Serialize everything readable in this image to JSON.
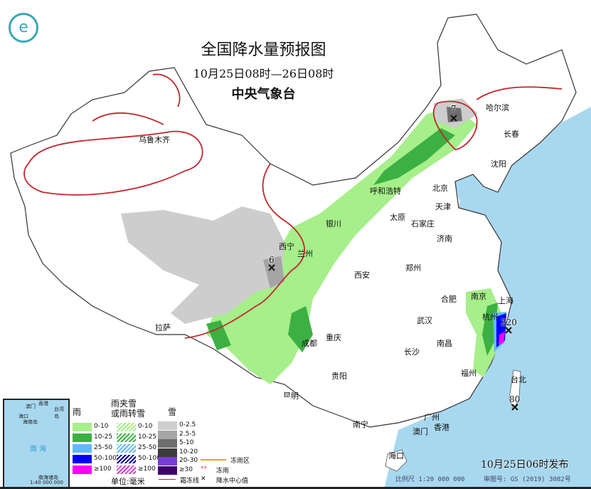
{
  "header": {
    "title": "全国降水量预报图",
    "period": "10月25日08时—26日08时",
    "issuer": "中央气象台"
  },
  "cities": [
    "哈尔滨",
    "长春",
    "沈阳",
    "北京",
    "天津",
    "呼和浩特",
    "乌鲁木齐",
    "银川",
    "太原",
    "石家庄",
    "济南",
    "西宁",
    "兰州",
    "西安",
    "郑州",
    "南京",
    "上海",
    "合肥",
    "杭州",
    "武汉",
    "成都",
    "重庆",
    "拉萨",
    "长沙",
    "南昌",
    "福州",
    "贵阳",
    "昆明",
    "台北",
    "南宁",
    "广州",
    "澳门",
    "香港",
    "海口"
  ],
  "precip_centers": [
    "7",
    "6",
    "220",
    "80"
  ],
  "inset": {
    "sea": "南 海",
    "islands": "南海诸岛",
    "scale": "1:40 000 000",
    "labels": [
      "海口",
      "海南岛",
      "台湾岛",
      "澳门",
      "香港"
    ]
  },
  "legend": {
    "rain_title": "雨",
    "mixed_title": "雨夹雪\n或雨转雪",
    "snow_title": "雪",
    "rain": [
      {
        "label": "0-10",
        "color": "#a6ef8a"
      },
      {
        "label": "10-25",
        "color": "#3cb043"
      },
      {
        "label": "25-50",
        "color": "#61b8ff"
      },
      {
        "label": "50-100",
        "color": "#0000fe"
      },
      {
        "label": "≥100",
        "color": "#fa00fa"
      }
    ],
    "mixed": [
      {
        "label": "0-10",
        "color": "#a6ef8a"
      },
      {
        "label": "10-25",
        "color": "#3cb043"
      },
      {
        "label": "25-50",
        "color": "#61b8ff"
      },
      {
        "label": "50-100",
        "color": "#0000a0"
      },
      {
        "label": "≥100",
        "color": "#d040d0"
      }
    ],
    "snow": [
      {
        "label": "0-2.5",
        "color": "#cdcdcd"
      },
      {
        "label": "2.5-5",
        "color": "#a5a5a5"
      },
      {
        "label": "5-10",
        "color": "#6e6e6e"
      },
      {
        "label": "10-20",
        "color": "#3c3c3c"
      },
      {
        "label": "20-30",
        "color": "#7a3cd8"
      },
      {
        "label": "≥30",
        "color": "#40006e"
      }
    ],
    "unit": "单位:毫米",
    "freezing_line": "霜冻线",
    "freezing_rain": "冻雨",
    "center_value": "降水中心值",
    "closed_area": "冻雨区"
  },
  "footer": {
    "issued": "10月25日06时发布",
    "scale": "比例尺 1:20 000 000",
    "map_no": "审图号: GS (2019) 3082号"
  }
}
